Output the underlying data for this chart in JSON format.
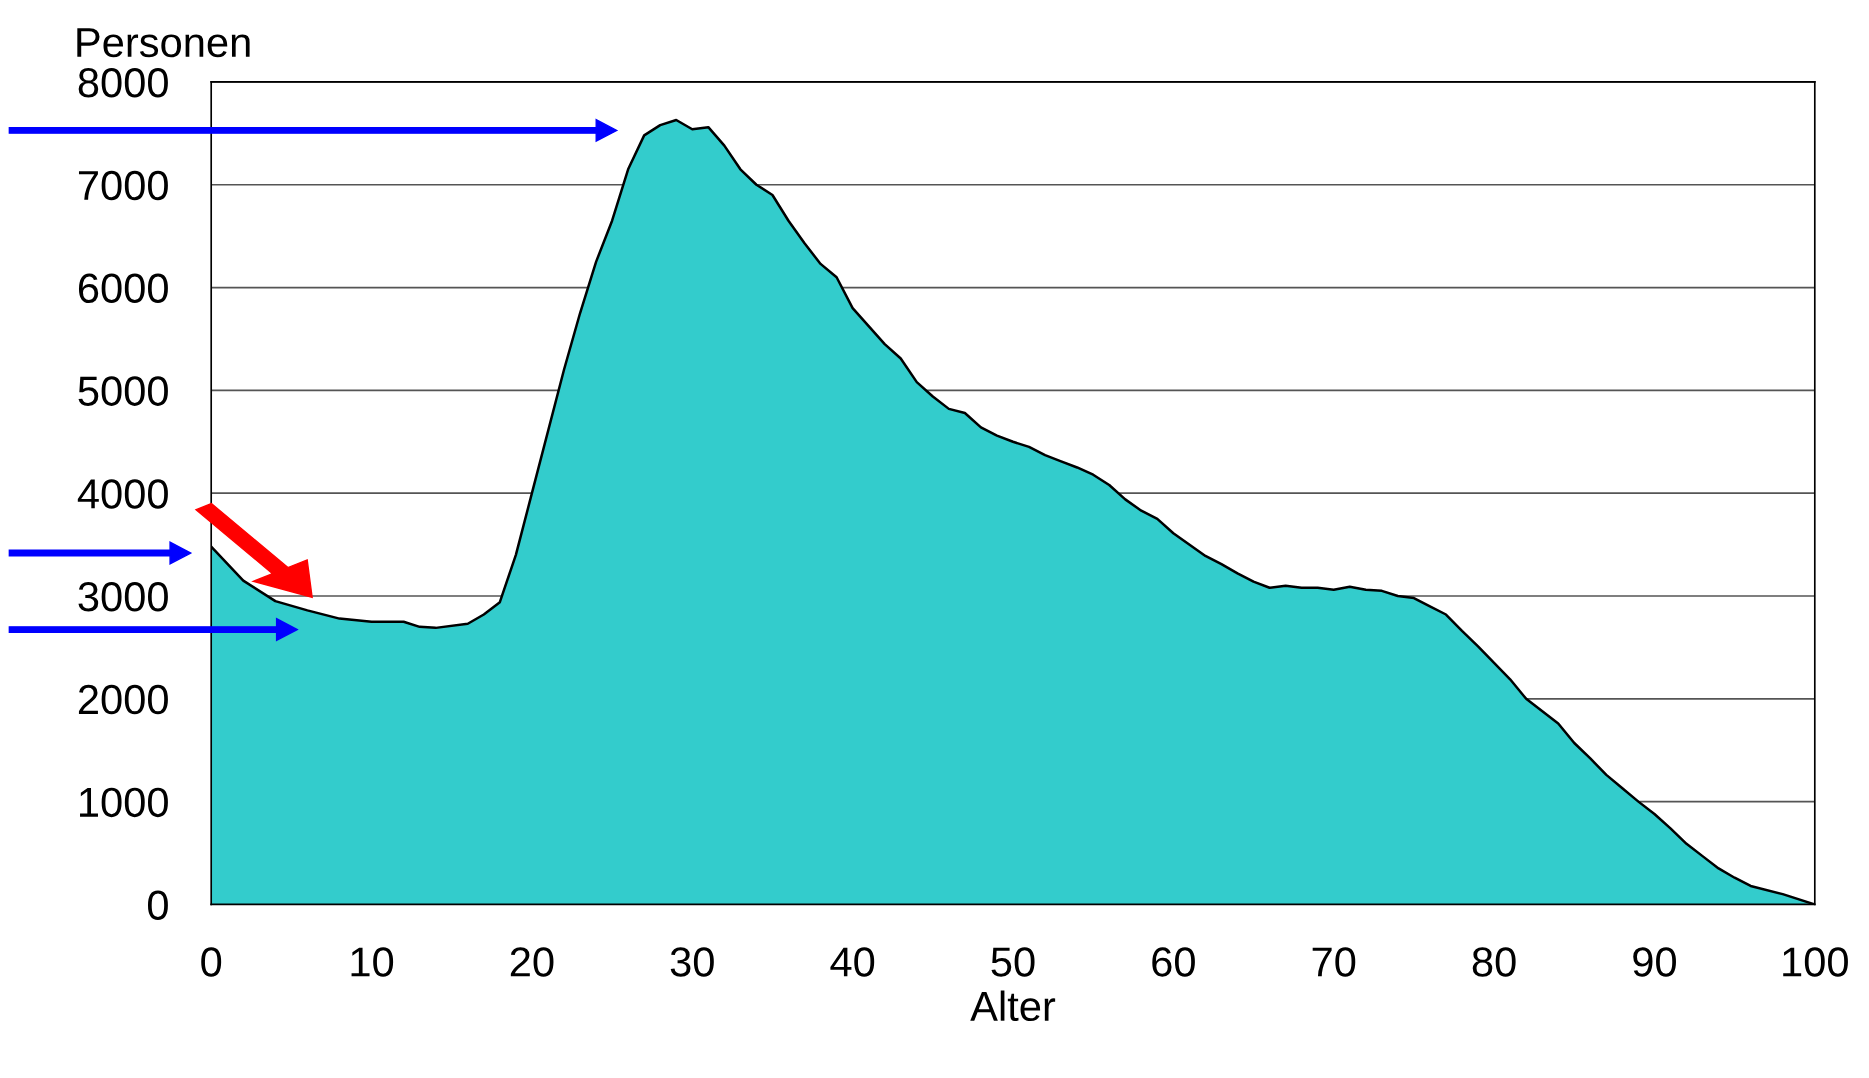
{
  "chart_data": {
    "type": "area",
    "xlabel": "Alter",
    "ylabel": "Personen",
    "x": [
      0,
      2,
      4,
      6,
      8,
      10,
      12,
      13,
      14,
      16,
      17,
      18,
      19,
      20,
      22,
      23,
      24,
      25,
      26,
      27,
      28,
      29,
      30,
      31,
      32,
      33,
      34,
      35,
      36,
      37,
      38,
      39,
      40,
      42,
      43,
      44,
      45,
      46,
      47,
      48,
      49,
      50,
      51,
      52,
      53,
      54,
      55,
      56,
      57,
      58,
      59,
      60,
      62,
      63,
      64,
      65,
      66,
      67,
      68,
      69,
      70,
      71,
      72,
      73,
      74,
      75,
      76,
      77,
      78,
      79,
      80,
      81,
      82,
      84,
      85,
      86,
      87,
      88,
      89,
      90,
      91,
      92,
      93,
      94,
      95,
      96,
      98,
      100
    ],
    "series": [
      {
        "color": "#33cccc",
        "values": [
          3480,
          3150,
          2950,
          2860,
          2780,
          2750,
          2750,
          2700,
          2690,
          2730,
          2820,
          2940,
          3400,
          4000,
          5200,
          5750,
          6250,
          6650,
          7150,
          7480,
          7580,
          7630,
          7540,
          7560,
          7380,
          7150,
          7000,
          6900,
          6650,
          6430,
          6230,
          6100,
          5800,
          5450,
          5310,
          5080,
          4940,
          4820,
          4780,
          4640,
          4560,
          4500,
          4450,
          4370,
          4310,
          4250,
          4180,
          4080,
          3940,
          3830,
          3750,
          3610,
          3390,
          3310,
          3220,
          3140,
          3080,
          3100,
          3080,
          3080,
          3060,
          3090,
          3060,
          3050,
          3000,
          2980,
          2900,
          2820,
          2660,
          2510,
          2350,
          2190,
          2000,
          1760,
          1570,
          1420,
          1260,
          1130,
          1000,
          880,
          740,
          590,
          470,
          350,
          260,
          180,
          100,
          0
        ]
      }
    ],
    "xlim": [
      0,
      100
    ],
    "xticks": [
      0,
      10,
      20,
      30,
      40,
      50,
      60,
      70,
      80,
      90,
      100
    ],
    "ylim": [
      0,
      8000
    ],
    "yticks": [
      0,
      1000,
      2000,
      3000,
      4000,
      5000,
      6000,
      7000,
      8000
    ],
    "grid": "y",
    "legend": false
  }
}
